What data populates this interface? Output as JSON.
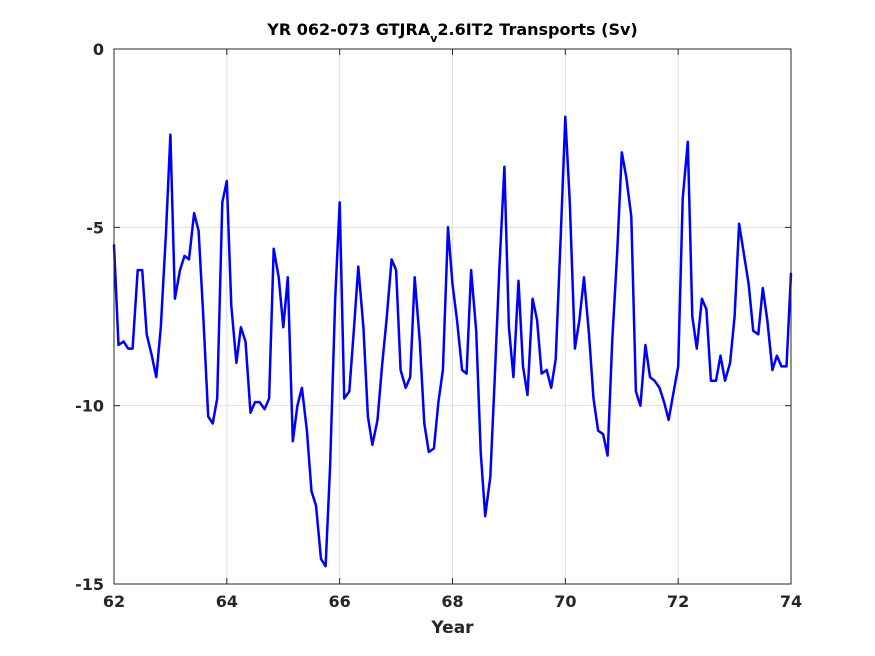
{
  "chart_data": {
    "type": "line",
    "title": {
      "prefix": "YR 062-073 GTJRA",
      "subscript": "v",
      "suffix": "2.6IT2 Transports (Sv)"
    },
    "xlabel": "Year",
    "ylabel": "",
    "xlim": [
      62,
      74
    ],
    "ylim": [
      -15,
      0
    ],
    "xticks": [
      62,
      64,
      66,
      68,
      70,
      72,
      74
    ],
    "yticks": [
      0,
      -5,
      -10,
      -15
    ],
    "grid": true,
    "series": [
      {
        "color": "#0000ff",
        "x": [
          62.0,
          62.08,
          62.17,
          62.25,
          62.33,
          62.42,
          62.5,
          62.58,
          62.67,
          62.75,
          62.83,
          62.92,
          63.0,
          63.08,
          63.17,
          63.25,
          63.33,
          63.42,
          63.5,
          63.58,
          63.67,
          63.75,
          63.83,
          63.92,
          64.0,
          64.08,
          64.17,
          64.25,
          64.33,
          64.42,
          64.5,
          64.58,
          64.67,
          64.75,
          64.83,
          64.92,
          65.0,
          65.08,
          65.17,
          65.25,
          65.33,
          65.42,
          65.5,
          65.58,
          65.67,
          65.75,
          65.83,
          65.92,
          66.0,
          66.08,
          66.17,
          66.25,
          66.33,
          66.42,
          66.5,
          66.58,
          66.67,
          66.75,
          66.83,
          66.92,
          67.0,
          67.08,
          67.17,
          67.25,
          67.33,
          67.42,
          67.5,
          67.58,
          67.67,
          67.75,
          67.83,
          67.92,
          68.0,
          68.08,
          68.17,
          68.25,
          68.33,
          68.42,
          68.5,
          68.58,
          68.67,
          68.75,
          68.83,
          68.92,
          69.0,
          69.08,
          69.17,
          69.25,
          69.33,
          69.42,
          69.5,
          69.58,
          69.67,
          69.75,
          69.83,
          69.92,
          70.0,
          70.08,
          70.17,
          70.25,
          70.33,
          70.42,
          70.5,
          70.58,
          70.67,
          70.75,
          70.83,
          70.92,
          71.0,
          71.08,
          71.17,
          71.25,
          71.33,
          71.42,
          71.5,
          71.58,
          71.67,
          71.75,
          71.83,
          71.92,
          72.0,
          72.08,
          72.17,
          72.25,
          72.33,
          72.42,
          72.5,
          72.58,
          72.67,
          72.75,
          72.83,
          72.92,
          73.0,
          73.08,
          73.17,
          73.25,
          73.33,
          73.42,
          73.5,
          73.58,
          73.67,
          73.75,
          73.83,
          73.92,
          74.0
        ],
        "y": [
          -5.5,
          -8.3,
          -8.2,
          -8.4,
          -8.4,
          -6.2,
          -6.2,
          -8.0,
          -8.6,
          -9.2,
          -7.8,
          -5.2,
          -2.4,
          -7.0,
          -6.2,
          -5.8,
          -5.9,
          -4.6,
          -5.1,
          -7.4,
          -10.3,
          -10.5,
          -9.8,
          -4.3,
          -3.7,
          -7.2,
          -8.8,
          -7.8,
          -8.2,
          -10.2,
          -9.9,
          -9.9,
          -10.1,
          -9.8,
          -5.6,
          -6.4,
          -7.8,
          -6.4,
          -11.0,
          -10.0,
          -9.5,
          -10.7,
          -12.4,
          -12.8,
          -14.3,
          -14.5,
          -11.7,
          -7.0,
          -4.3,
          -9.8,
          -9.6,
          -7.9,
          -6.1,
          -7.8,
          -10.3,
          -11.1,
          -10.4,
          -8.9,
          -7.6,
          -5.9,
          -6.2,
          -9.0,
          -9.5,
          -9.2,
          -6.4,
          -8.2,
          -10.5,
          -11.3,
          -11.2,
          -9.9,
          -9.0,
          -5.0,
          -6.6,
          -7.6,
          -9.0,
          -9.1,
          -6.2,
          -7.9,
          -11.3,
          -13.1,
          -12.0,
          -9.2,
          -6.2,
          -3.3,
          -7.8,
          -9.2,
          -6.5,
          -8.9,
          -9.7,
          -7.0,
          -7.6,
          -9.1,
          -9.0,
          -9.5,
          -8.7,
          -5.2,
          -1.9,
          -4.3,
          -8.4,
          -7.6,
          -6.4,
          -8.0,
          -9.8,
          -10.7,
          -10.8,
          -11.4,
          -8.2,
          -5.7,
          -2.9,
          -3.6,
          -4.7,
          -9.6,
          -10.0,
          -8.3,
          -9.2,
          -9.3,
          -9.5,
          -9.9,
          -10.4,
          -9.6,
          -8.9,
          -4.2,
          -2.6,
          -7.5,
          -8.4,
          -7.0,
          -7.3,
          -9.3,
          -9.3,
          -8.6,
          -9.3,
          -8.8,
          -7.5,
          -4.9,
          -5.8,
          -6.6,
          -7.9,
          -8.0,
          -6.7,
          -7.6,
          -9.0,
          -8.6,
          -8.9,
          -8.9,
          -6.3
        ]
      }
    ]
  }
}
